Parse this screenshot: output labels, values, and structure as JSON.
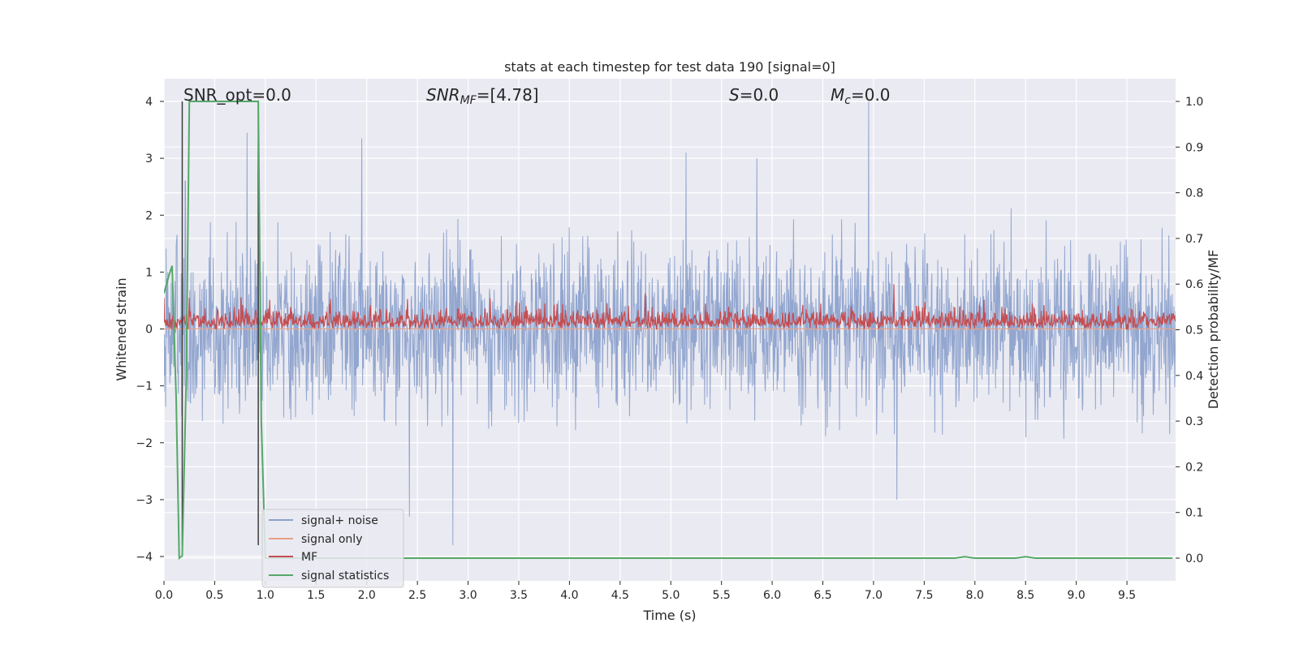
{
  "chart_data": {
    "type": "line",
    "title": "stats at each timestep for test data 190 [signal=0]",
    "xlabel": "Time (s)",
    "ylabel_left": "Whitened strain",
    "ylabel_right": "Detection probability/MF",
    "xlim": [
      0.0,
      9.98
    ],
    "ylim_left": [
      -4.4,
      4.4
    ],
    "ylim_right": [
      0.0,
      1.0
    ],
    "x_ticks": [
      0.0,
      0.5,
      1.0,
      1.5,
      2.0,
      2.5,
      3.0,
      3.5,
      4.0,
      4.5,
      5.0,
      5.5,
      6.0,
      6.5,
      7.0,
      7.5,
      8.0,
      8.5,
      9.0,
      9.5
    ],
    "x_tick_labels": [
      "0.0",
      "0.5",
      "1.0",
      "1.5",
      "2.0",
      "2.5",
      "3.0",
      "3.5",
      "4.0",
      "4.5",
      "5.0",
      "5.5",
      "6.0",
      "6.5",
      "7.0",
      "7.5",
      "8.0",
      "8.5",
      "9.0",
      "9.5"
    ],
    "y_ticks_left": [
      -4,
      -3,
      -2,
      -1,
      0,
      1,
      2,
      3,
      4
    ],
    "y_tick_labels_left": [
      "−4",
      "−3",
      "−2",
      "−1",
      "0",
      "1",
      "2",
      "3",
      "4"
    ],
    "y_ticks_right": [
      0.0,
      0.1,
      0.2,
      0.3,
      0.4,
      0.5,
      0.6,
      0.7,
      0.8,
      0.9,
      1.0
    ],
    "y_tick_labels_right": [
      "0.0",
      "0.1",
      "0.2",
      "0.3",
      "0.4",
      "0.5",
      "0.6",
      "0.7",
      "0.8",
      "0.9",
      "1.0"
    ],
    "grid": true,
    "legend_placement": "lower-left",
    "annotations": [
      {
        "text": "SNR_opt=0.0",
        "x": 0.18,
        "y": 4.0
      },
      {
        "text": "SNR_MF=[4.78]",
        "x": 2.6,
        "y": 4.0
      },
      {
        "text": "S=0.0",
        "x": 5.6,
        "y": 4.0
      },
      {
        "text": "M_c=0.0",
        "x": 6.6,
        "y": 4.0
      }
    ],
    "vlines": [
      {
        "x": 0.18,
        "y_top": 4.0,
        "y_bottom": -3.8
      },
      {
        "x": 0.93,
        "y_top": 4.0,
        "y_bottom": -3.8
      }
    ],
    "series": [
      {
        "name": "signal+ noise",
        "color": "#8da2cc",
        "axis": "left",
        "description_range": [
          -3.8,
          4.0
        ],
        "peaks": [
          {
            "x": 0.21,
            "y": 2.6
          },
          {
            "x": 0.82,
            "y": 3.45
          },
          {
            "x": 1.95,
            "y": 3.35
          },
          {
            "x": 5.15,
            "y": 3.1
          },
          {
            "x": 5.85,
            "y": 3.0
          },
          {
            "x": 6.95,
            "y": 4.0
          },
          {
            "x": 2.85,
            "y": -3.8
          },
          {
            "x": 2.42,
            "y": -3.3
          },
          {
            "x": 7.23,
            "y": -3.0
          }
        ]
      },
      {
        "name": "signal only",
        "color": "#e8a088",
        "axis": "left",
        "values_constant": 0.0
      },
      {
        "name": "MF",
        "color": "#c44e52",
        "axis": "right",
        "baseline_range": [
          0.5,
          0.55
        ],
        "peaks": [
          {
            "x": 7.2,
            "y": 0.6
          },
          {
            "x": 0.0,
            "y": 0.57
          },
          {
            "x": 4.75,
            "y": 0.58
          }
        ]
      },
      {
        "name": "signal statistics",
        "color": "#55a868",
        "axis": "right",
        "x": [
          0.0,
          0.05,
          0.08,
          0.12,
          0.15,
          0.18,
          0.22,
          0.25,
          0.5,
          0.93,
          0.96,
          1.0,
          2.0,
          3.0,
          4.0,
          5.0,
          6.0,
          7.0,
          7.8,
          7.9,
          8.0,
          8.4,
          8.5,
          8.6,
          9.0,
          9.95
        ],
        "values": [
          0.58,
          0.62,
          0.64,
          0.35,
          0.0,
          0.005,
          0.4,
          1.0,
          1.0,
          1.0,
          0.3,
          0.0,
          0.0,
          0.0,
          0.0,
          0.0,
          0.0,
          0.0,
          0.0,
          0.003,
          0.0,
          0.0,
          0.003,
          0.0,
          0.0,
          0.0
        ]
      }
    ]
  },
  "annotations": {
    "snr_opt": "SNR_opt=0.0",
    "snr_mf_prefix": "SNR",
    "snr_mf_sub": "MF",
    "snr_mf_suffix": "=[4.78]",
    "s_name": "S",
    "s_suffix": "=0.0",
    "mc_name": "M",
    "mc_sub": "c",
    "mc_suffix": "=0.0"
  },
  "legend": {
    "items": [
      "signal+ noise",
      "signal only",
      "MF",
      "signal statistics"
    ]
  },
  "colors": {
    "plot_bg": "#eaeaf2",
    "grid": "#ffffff",
    "noise": "#8da2cc",
    "signal_only": "#e8a088",
    "mf": "#c44e52",
    "stats": "#55a868",
    "vline": "#3d3d3d"
  }
}
